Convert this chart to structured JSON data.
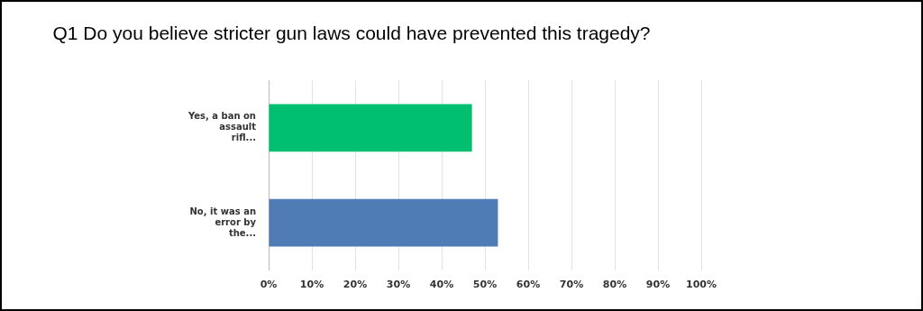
{
  "chart_data": {
    "type": "bar",
    "orientation": "horizontal",
    "title": "Q1 Do you believe stricter gun laws could have prevented this tragedy?",
    "categories": [
      "Yes, a ban on assault rifl...",
      "No, it was an error by the..."
    ],
    "values": [
      47,
      53
    ],
    "colors": [
      "#00bf6f",
      "#507cb6"
    ],
    "xlim": [
      0,
      100
    ],
    "xticks": [
      {
        "value": 0,
        "label": "0%"
      },
      {
        "value": 10,
        "label": "10%"
      },
      {
        "value": 20,
        "label": "20%"
      },
      {
        "value": 30,
        "label": "30%"
      },
      {
        "value": 40,
        "label": "40%"
      },
      {
        "value": 50,
        "label": "50%"
      },
      {
        "value": 60,
        "label": "60%"
      },
      {
        "value": 70,
        "label": "70%"
      },
      {
        "value": 80,
        "label": "80%"
      },
      {
        "value": 90,
        "label": "90%"
      },
      {
        "value": 100,
        "label": "100%"
      }
    ],
    "grid": "x"
  }
}
